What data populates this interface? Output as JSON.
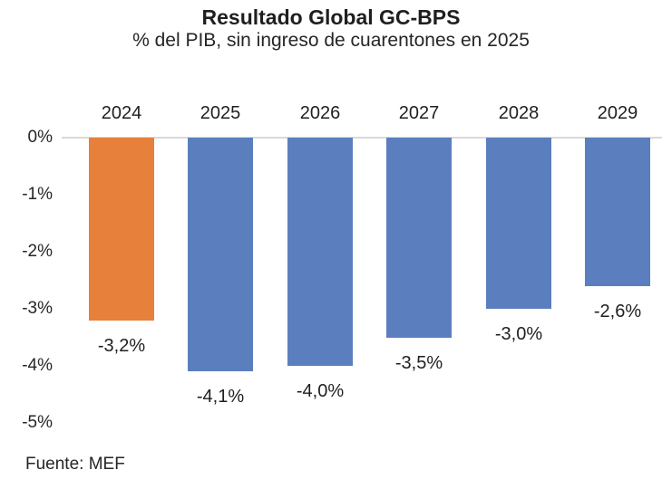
{
  "header": {
    "title": "Resultado Global GC-BPS",
    "subtitle": "% del PIB, sin ingreso de cuarentones en 2025"
  },
  "footer": {
    "source": "Fuente: MEF"
  },
  "chart_data": {
    "type": "bar",
    "title": "Resultado Global GC-BPS",
    "subtitle": "% del PIB, sin ingreso de cuarentones en 2025",
    "categories": [
      "2024",
      "2025",
      "2026",
      "2027",
      "2028",
      "2029"
    ],
    "values": [
      -3.2,
      -4.1,
      -4.0,
      -3.5,
      -3.0,
      -2.6
    ],
    "value_labels": [
      "-3,2%",
      "-4,1%",
      "-4,0%",
      "-3,5%",
      "-3,0%",
      "-2,6%"
    ],
    "bar_colors": [
      "#e6803a",
      "#5b7fbe",
      "#5b7fbe",
      "#5b7fbe",
      "#5b7fbe",
      "#5b7fbe"
    ],
    "highlight_color": "#e6803a",
    "series_color": "#5b7fbe",
    "xlabel": "",
    "ylabel": "",
    "y_ticks": [
      "0%",
      "-1%",
      "-2%",
      "-3%",
      "-4%",
      "-5%"
    ],
    "ylim": [
      -5,
      0
    ],
    "grid": "zero-line-only",
    "axis_line_color": "#d9d9d9",
    "legend": "none",
    "source": "Fuente: MEF"
  }
}
